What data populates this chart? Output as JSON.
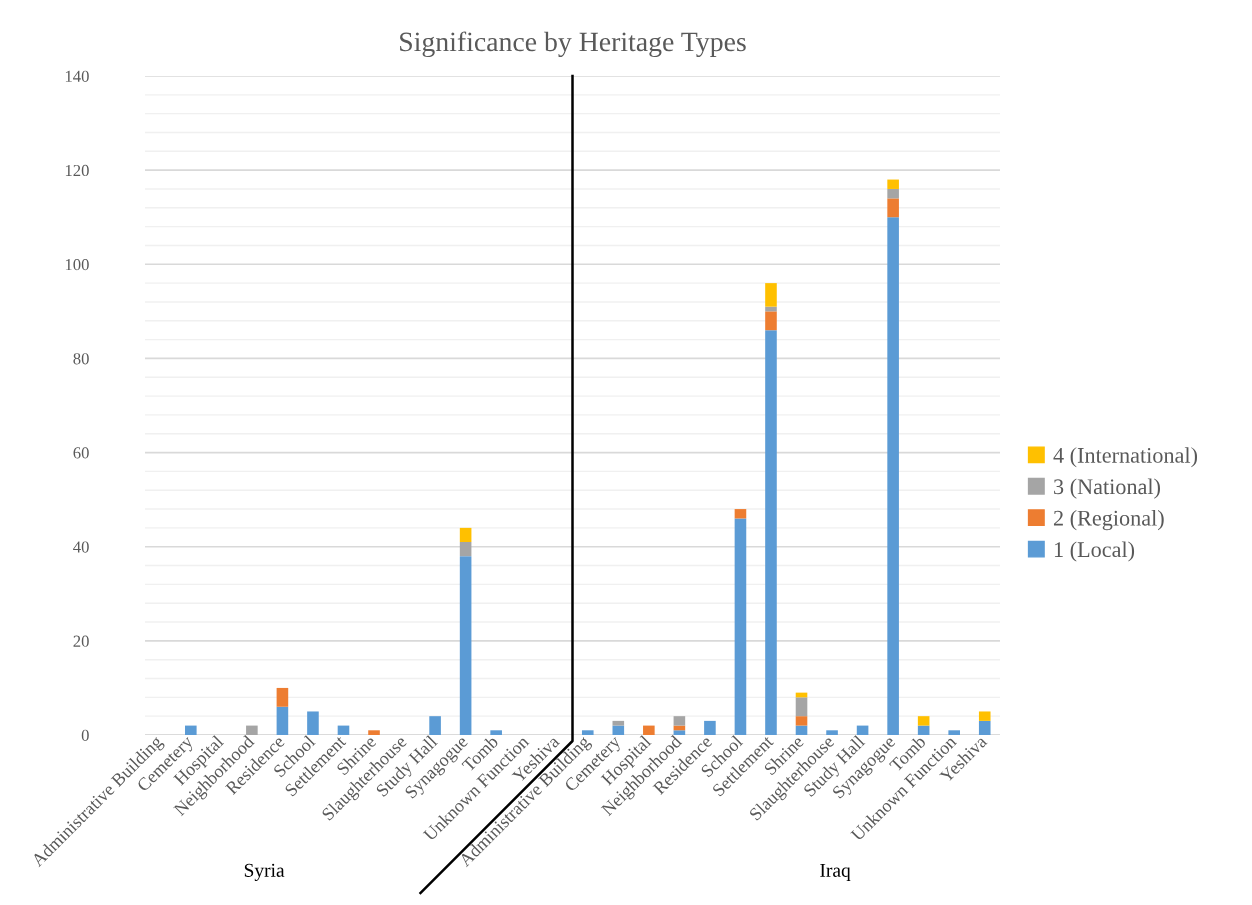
{
  "chart_data": {
    "type": "bar",
    "title": "Significance by Heritage Types",
    "stacked": true,
    "categories": [
      "Administrative Building",
      "Cemetery",
      "Hospital",
      "Neighborhood",
      "Residence",
      "School",
      "Settlement",
      "Shrine",
      "Slaughterhouse",
      "Study Hall",
      "Synagogue",
      "Tomb",
      "Unknown Function",
      "Yeshiva",
      "Administrative Building",
      "Cemetery",
      "Hospital",
      "Neighborhood",
      "Residence",
      "School",
      "Settlement",
      "Shrine",
      "Slaughterhouse",
      "Study Hall",
      "Synagogue",
      "Tomb",
      "Unknown Function",
      "Yeshiva"
    ],
    "series": [
      {
        "name": "1 (Local)",
        "color": "#5b9bd5",
        "values": [
          0,
          2,
          0,
          0,
          6,
          5,
          2,
          0,
          0,
          4,
          38,
          1,
          0,
          0,
          1,
          2,
          0,
          1,
          3,
          46,
          86,
          2,
          1,
          2,
          110,
          2,
          1,
          3
        ]
      },
      {
        "name": "2 (Regional)",
        "color": "#ed7d31",
        "values": [
          0,
          0,
          0,
          0,
          4,
          0,
          0,
          1,
          0,
          0,
          0,
          0,
          0,
          0,
          0,
          0,
          2,
          1,
          0,
          2,
          4,
          2,
          0,
          0,
          4,
          0,
          0,
          0
        ]
      },
      {
        "name": "3 (National)",
        "color": "#a5a5a5",
        "values": [
          0,
          0,
          0,
          2,
          0,
          0,
          0,
          0,
          0,
          0,
          3,
          0,
          0,
          0,
          0,
          1,
          0,
          2,
          0,
          0,
          1,
          4,
          0,
          0,
          2,
          0,
          0,
          0
        ]
      },
      {
        "name": "4 (International)",
        "color": "#ffc000",
        "values": [
          0,
          0,
          0,
          0,
          0,
          0,
          0,
          0,
          0,
          0,
          3,
          0,
          0,
          0,
          0,
          0,
          0,
          0,
          0,
          0,
          5,
          1,
          0,
          0,
          2,
          2,
          0,
          2
        ]
      }
    ],
    "ylim": [
      0,
      140
    ],
    "yticks": [
      0,
      {
        "value": 4,
        "label": null
      },
      {
        "value": 8,
        "label": null
      },
      {
        "value": 12,
        "label": null
      },
      {
        "value": 16,
        "label": null
      },
      20,
      {
        "value": 24,
        "label": null
      },
      {
        "value": 28,
        "label": null
      },
      {
        "value": 32,
        "label": null
      },
      {
        "value": 36,
        "label": null
      },
      40,
      {
        "value": 44,
        "label": null
      },
      {
        "value": 48,
        "label": null
      },
      {
        "value": 52,
        "label": null
      },
      {
        "value": 56,
        "label": null
      },
      60,
      {
        "value": 64,
        "label": null
      },
      {
        "value": 68,
        "label": null
      },
      {
        "value": 72,
        "label": null
      },
      {
        "value": 76,
        "label": null
      },
      80,
      {
        "value": 84,
        "label": null
      },
      {
        "value": 88,
        "label": null
      },
      {
        "value": 92,
        "label": null
      },
      {
        "value": 96,
        "label": null
      },
      100,
      {
        "value": 104,
        "label": null
      },
      {
        "value": 108,
        "label": null
      },
      {
        "value": 112,
        "label": null
      },
      {
        "value": 116,
        "label": null
      },
      120,
      {
        "value": 124,
        "label": null
      },
      {
        "value": 128,
        "label": null
      },
      {
        "value": 132,
        "label": null
      },
      {
        "value": 136,
        "label": null
      },
      140
    ],
    "grid": "y",
    "legend": "right",
    "annotations": [
      "Syria",
      "Iraq"
    ]
  }
}
